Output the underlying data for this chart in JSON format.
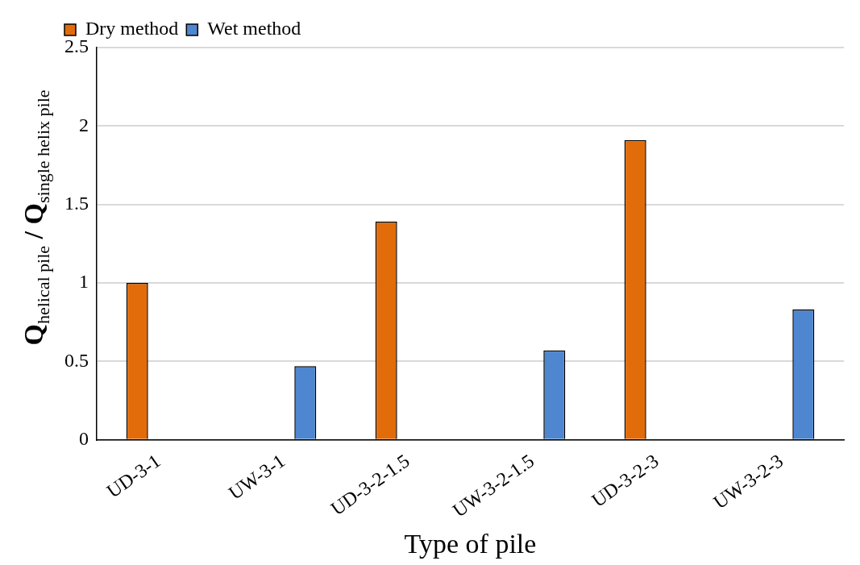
{
  "chart_data": {
    "type": "bar",
    "xlabel": "Type of pile",
    "ylabel": "Q$_{helical pile}$ / Q$_{single helix pile}$",
    "categories": [
      "UD-3-1",
      "UW-3-1",
      "UD-3-2-1.5",
      "UW-3-2-1.5",
      "UD-3-2-3",
      "UW-3-2-3"
    ],
    "series": [
      {
        "name": "Dry method",
        "color": "#e36c0a",
        "values": [
          1.0,
          null,
          1.39,
          null,
          1.91,
          null
        ]
      },
      {
        "name": "Wet method",
        "color": "#4f86d0",
        "values": [
          null,
          0.47,
          null,
          0.57,
          null,
          0.83
        ]
      }
    ],
    "ylim": [
      0,
      2.5
    ],
    "yticks": [
      0,
      0.5,
      1,
      1.5,
      2,
      2.5
    ],
    "grid": "y",
    "legend": "top left"
  }
}
